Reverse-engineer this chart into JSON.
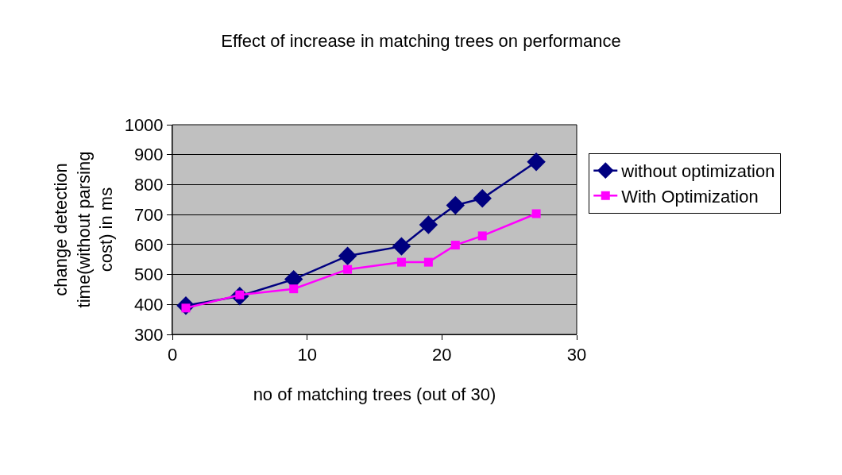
{
  "chart_data": {
    "type": "line",
    "title": "Effect of increase in matching trees on performance",
    "xlabel": "no of matching trees (out of 30)",
    "ylabel": "change detection time(without parsing cost) in ms",
    "x": [
      1,
      5,
      9,
      13,
      17,
      19,
      21,
      23,
      27
    ],
    "series": [
      {
        "name": "without optimization",
        "color": "#000080",
        "marker": "diamond",
        "values": [
          396,
          428,
          484,
          562,
          594,
          666,
          731,
          754,
          876
        ]
      },
      {
        "name": "With Optimization",
        "color": "#ff00ff",
        "marker": "square",
        "values": [
          388,
          432,
          452,
          517,
          541,
          541,
          598,
          629,
          703
        ]
      }
    ],
    "xlim": [
      0,
      30
    ],
    "xticks": [
      0,
      10,
      20,
      30
    ],
    "ylim": [
      300,
      1000
    ],
    "yticks": [
      300,
      400,
      500,
      600,
      700,
      800,
      900,
      1000
    ],
    "grid": "y",
    "legend": "right",
    "line_style": "solid"
  }
}
